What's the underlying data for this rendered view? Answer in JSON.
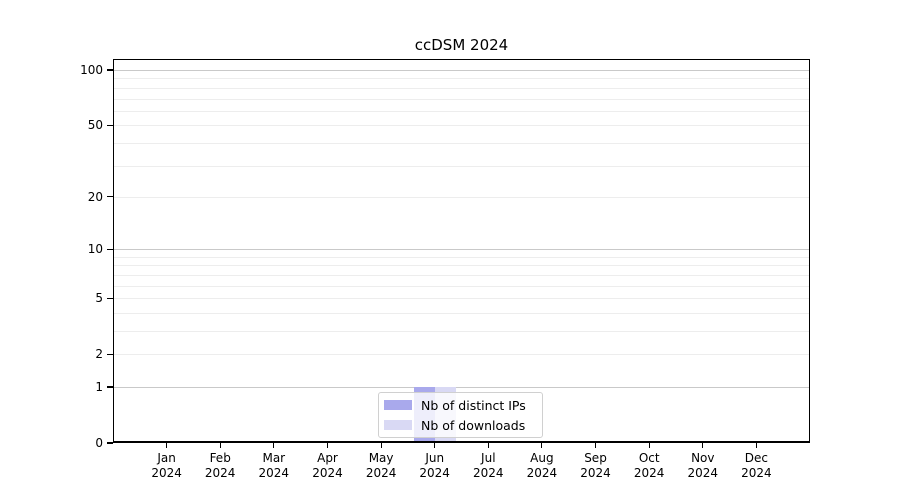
{
  "chart_data": {
    "type": "bar",
    "title": "ccDSM 2024",
    "categories": [
      "Jan 2024",
      "Feb 2024",
      "Mar 2024",
      "Apr 2024",
      "May 2024",
      "Jun 2024",
      "Jul 2024",
      "Aug 2024",
      "Sep 2024",
      "Oct 2024",
      "Nov 2024",
      "Dec 2024"
    ],
    "series": [
      {
        "name": "Nb of distinct IPs",
        "color": "#a9a9ec",
        "values": [
          0,
          0,
          0,
          0,
          0,
          1,
          0,
          0,
          0,
          0,
          0,
          0
        ]
      },
      {
        "name": "Nb of downloads",
        "color": "#d9d9f4",
        "values": [
          0,
          0,
          0,
          0,
          0,
          1,
          0,
          0,
          0,
          0,
          0,
          0
        ]
      }
    ],
    "y_axis": {
      "scale": "log(value+1)",
      "tick_values": [
        0,
        1,
        2,
        5,
        10,
        20,
        50,
        100
      ],
      "tick_labels": [
        "0",
        "1",
        "2",
        "5",
        "10",
        "20",
        "50",
        "100"
      ],
      "major_gridlines": [
        1,
        10,
        100
      ],
      "minor_gridlines": [
        2,
        3,
        4,
        5,
        6,
        7,
        8,
        9,
        20,
        30,
        40,
        50,
        60,
        70,
        80,
        90
      ],
      "range": [
        0,
        115
      ]
    },
    "legend": {
      "position": "bottom-center",
      "entries": [
        "Nb of distinct IPs",
        "Nb of downloads"
      ]
    },
    "grid": true
  },
  "colors": {
    "background": "#ffffff",
    "axis": "#000000",
    "major_grid": "#c9c9c9",
    "minor_grid": "#ededed",
    "legend_border": "#d0d0d0",
    "text": "#000000"
  }
}
